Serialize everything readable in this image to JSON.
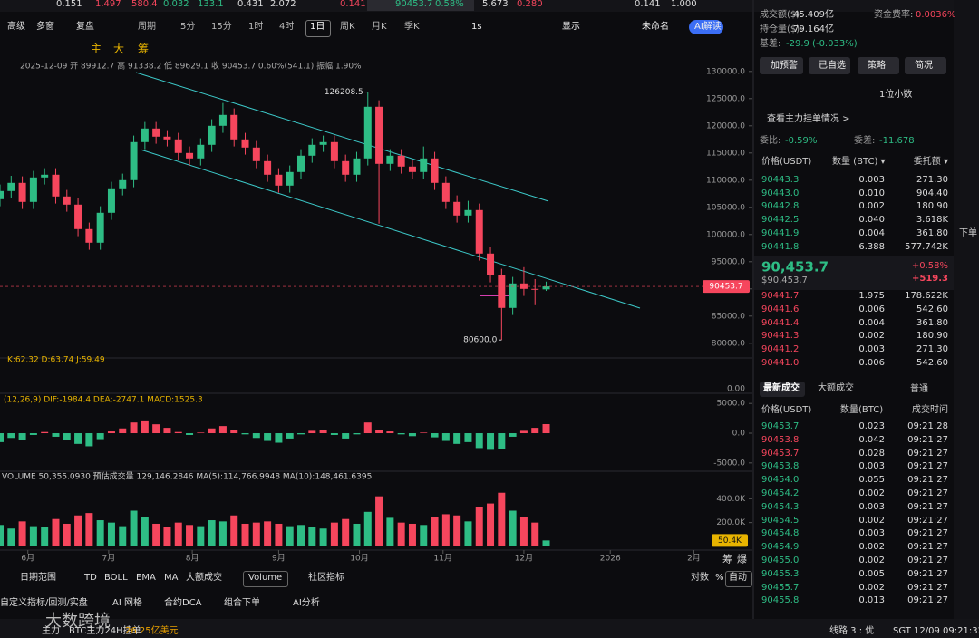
{
  "ticker": [
    "0.151",
    "1.497",
    "580.4",
    "0.032",
    "133.1",
    "0.431",
    "2.072",
    "0.141",
    "90453.7",
    "0.58%",
    "5.673",
    "0.280",
    "0.141",
    "1.000"
  ],
  "toolbar": {
    "left": [
      "高级",
      "多窗",
      "复盘"
    ],
    "periods": [
      "周期",
      "5分",
      "15分",
      "1时",
      "4时",
      "1日",
      "周K",
      "月K",
      "季K"
    ],
    "active_period": 5,
    "right": [
      "1s",
      "显示",
      "未命名",
      "AI解读"
    ]
  },
  "drawbar": [
    "主",
    "大",
    "筹"
  ],
  "info": "2025-12-09  开 89912.7  高 91338.2  低 89629.1  收 90453.7  0.60%(541.1)  振幅 1.90%",
  "indicators": {
    "kdj_label": "K:62.32  D:63.74  J:59.49",
    "kdj_tick": "0.00",
    "macd_label": "(12,26,9)  DIF:-1984.4  DEA:-2747.1  MACD:1525.3",
    "volume_label": "VOLUME 50,355.0930  预估成交量 129,146.2846  MA(5):114,766.9948  MA(10):148,461.6395"
  },
  "chart_data": [
    {
      "type": "candlestick",
      "up_color": "#2ebd85",
      "down_color": "#f6465d",
      "x": [
        0,
        4,
        8,
        12,
        16,
        20,
        24,
        28,
        32,
        36,
        40,
        44,
        48,
        52,
        56,
        60,
        64,
        68,
        72,
        76,
        80,
        84,
        88,
        92,
        96,
        100,
        104,
        108,
        112,
        116,
        120,
        124,
        128,
        132,
        136,
        140,
        144,
        148,
        152,
        156,
        160,
        164,
        168,
        172,
        176,
        180,
        184,
        188,
        192,
        196
      ],
      "ohlc": [
        [
          106500,
          109200,
          105200,
          108000
        ],
        [
          108000,
          110800,
          106700,
          109500
        ],
        [
          109500,
          110700,
          104700,
          106000
        ],
        [
          106000,
          111700,
          104700,
          110500
        ],
        [
          110500,
          112200,
          109200,
          111000
        ],
        [
          111000,
          112200,
          105700,
          107000
        ],
        [
          107000,
          108200,
          104200,
          105500
        ],
        [
          105500,
          106700,
          99700,
          101000
        ],
        [
          101000,
          102200,
          97200,
          98500
        ],
        [
          98500,
          105200,
          97200,
          104000
        ],
        [
          104000,
          109700,
          102700,
          108500
        ],
        [
          108500,
          111200,
          107200,
          110000
        ],
        [
          110000,
          118200,
          108700,
          117000
        ],
        [
          117000,
          120700,
          115700,
          119500
        ],
        [
          119500,
          120700,
          116700,
          118000
        ],
        [
          118000,
          119200,
          116200,
          117500
        ],
        [
          117500,
          118700,
          113700,
          115000
        ],
        [
          115000,
          116200,
          112700,
          114000
        ],
        [
          114000,
          117700,
          112700,
          116500
        ],
        [
          116500,
          121200,
          115200,
          120000
        ],
        [
          120000,
          124200,
          118700,
          122000
        ],
        [
          122000,
          123200,
          116200,
          117500
        ],
        [
          117500,
          118700,
          114700,
          116000
        ],
        [
          116000,
          117200,
          112200,
          113500
        ],
        [
          113500,
          114700,
          109700,
          111000
        ],
        [
          111000,
          112200,
          107700,
          109000
        ],
        [
          109000,
          112700,
          107700,
          111500
        ],
        [
          111500,
          115700,
          110200,
          114500
        ],
        [
          114500,
          117700,
          113200,
          116500
        ],
        [
          116500,
          118200,
          115200,
          117000
        ],
        [
          117000,
          118200,
          112200,
          113500
        ],
        [
          113500,
          114700,
          109700,
          111000
        ],
        [
          111000,
          115200,
          109700,
          114000
        ],
        [
          114000,
          126208.5,
          112700,
          123500
        ],
        [
          123500,
          124700,
          102000,
          113000
        ],
        [
          113000,
          115700,
          111700,
          114500
        ],
        [
          114500,
          115700,
          111200,
          112500
        ],
        [
          112500,
          113700,
          110200,
          111500
        ],
        [
          111500,
          116200,
          110200,
          114000
        ],
        [
          114000,
          115200,
          108200,
          109500
        ],
        [
          109500,
          110700,
          104700,
          106000
        ],
        [
          106000,
          107200,
          102200,
          103500
        ],
        [
          103500,
          106200,
          102200,
          104500
        ],
        [
          104500,
          105700,
          95200,
          96500
        ],
        [
          96500,
          97700,
          91200,
          92500
        ],
        [
          92500,
          93700,
          80600,
          86500
        ],
        [
          86500,
          92200,
          85200,
          91000
        ],
        [
          91000,
          94000,
          88700,
          90000
        ],
        [
          90000,
          91800,
          87000,
          89912.7
        ],
        [
          89912.7,
          91338.2,
          89629.1,
          90453.7
        ]
      ],
      "xlim": [
        0,
        270
      ],
      "xticks": [
        {
          "value": 10,
          "label": "6月"
        },
        {
          "value": 39,
          "label": "7月"
        },
        {
          "value": 69,
          "label": "8月"
        },
        {
          "value": 100,
          "label": "9月"
        },
        {
          "value": 129,
          "label": "10月"
        },
        {
          "value": 159,
          "label": "11月"
        },
        {
          "value": 188,
          "label": "12月"
        },
        {
          "value": 219,
          "label": "2026"
        },
        {
          "value": 249,
          "label": "2月"
        }
      ],
      "ylim": [
        77800,
        131800
      ],
      "yticks": [
        {
          "value": 80000,
          "label": "80000.0"
        },
        {
          "value": 85000,
          "label": "85000.0"
        },
        {
          "value": 90000,
          "label": "90000.0"
        },
        {
          "value": 95000,
          "label": "95000.0"
        },
        {
          "value": 100000,
          "label": "100000.0"
        },
        {
          "value": 105000,
          "label": "105000.0"
        },
        {
          "value": 110000,
          "label": "110000.0"
        },
        {
          "value": 115000,
          "label": "115000.0"
        },
        {
          "value": 120000,
          "label": "120000.0"
        },
        {
          "value": 125000,
          "label": "125000.0"
        },
        {
          "value": 130000,
          "label": "130000.0"
        }
      ],
      "annotations": [
        {
          "x": 132,
          "y": 126208.5,
          "label": "126208.5"
        },
        {
          "x": 180,
          "y": 80600,
          "label": "80600.0"
        }
      ],
      "last_price": {
        "value": 90453.7,
        "label": "90453.7"
      }
    },
    {
      "type": "histogram",
      "pos_color": "#f6465d",
      "neg_color": "#2ebd85",
      "x": [
        0,
        4,
        8,
        12,
        16,
        20,
        24,
        28,
        32,
        36,
        40,
        44,
        48,
        52,
        56,
        60,
        64,
        68,
        72,
        76,
        80,
        84,
        88,
        92,
        96,
        100,
        104,
        108,
        112,
        116,
        120,
        124,
        128,
        132,
        136,
        140,
        144,
        148,
        152,
        156,
        160,
        164,
        168,
        172,
        176,
        180,
        184,
        188,
        192,
        196
      ],
      "values": [
        -1500,
        -800,
        -1200,
        -300,
        200,
        -600,
        -1100,
        -1800,
        -2200,
        -1000,
        300,
        800,
        1800,
        2000,
        1500,
        900,
        200,
        -300,
        100,
        800,
        1200,
        600,
        -200,
        -800,
        -1300,
        -1600,
        -900,
        -200,
        400,
        500,
        -300,
        -900,
        -200,
        1800,
        600,
        300,
        -200,
        -500,
        100,
        -700,
        -1300,
        -1800,
        -1500,
        -2500,
        -2800,
        -2600,
        -600,
        400,
        900,
        1525.3
      ],
      "xlim": [
        0,
        270
      ],
      "ylim": [
        -6700,
        6400
      ],
      "yticks": [
        {
          "value": 5000,
          "label": "5000.0"
        },
        {
          "value": 0,
          "label": "0.0"
        },
        {
          "value": -5000,
          "label": "-5000.0"
        }
      ]
    },
    {
      "type": "bar",
      "up_color": "#2ebd85",
      "down_color": "#f6465d",
      "x": [
        0,
        4,
        8,
        12,
        16,
        20,
        24,
        28,
        32,
        36,
        40,
        44,
        48,
        52,
        56,
        60,
        64,
        68,
        72,
        76,
        80,
        84,
        88,
        92,
        96,
        100,
        104,
        108,
        112,
        116,
        120,
        124,
        128,
        132,
        136,
        140,
        144,
        148,
        152,
        156,
        160,
        164,
        168,
        172,
        176,
        180,
        184,
        188,
        192,
        196
      ],
      "values": [
        180000,
        150000,
        210000,
        170000,
        160000,
        230000,
        190000,
        260000,
        280000,
        220000,
        200000,
        170000,
        300000,
        250000,
        190000,
        160000,
        200000,
        180000,
        170000,
        220000,
        210000,
        260000,
        190000,
        200000,
        210000,
        190000,
        170000,
        180000,
        160000,
        150000,
        200000,
        230000,
        190000,
        290000,
        420000,
        240000,
        200000,
        190000,
        180000,
        250000,
        270000,
        260000,
        210000,
        330000,
        360000,
        450000,
        300000,
        250000,
        200000,
        50355.093
      ],
      "xlim": [
        0,
        270
      ],
      "ylim": [
        0,
        615000
      ],
      "yticks": [
        {
          "value": 400000,
          "label": "400.0K"
        },
        {
          "value": 200000,
          "label": "200.0K"
        }
      ],
      "last_label": {
        "value": 50355.093,
        "label": "50.4K"
      }
    }
  ],
  "indicator_bar": {
    "items": [
      "日期范围",
      "TD",
      "BOLL",
      "EMA",
      "MA",
      "大额成交",
      "Volume",
      "社区指标"
    ],
    "right": [
      "对数",
      "%",
      "自动"
    ],
    "side": [
      "筹",
      "爆"
    ]
  },
  "tools_bar": [
    "自定义指标/回测/实盘",
    "AI 网格",
    "合约DCA",
    "组合下单",
    "AI分析"
  ],
  "status": {
    "watermark": "大数跨境",
    "main": "主力",
    "label": "BTC主力24H挂单",
    "value": "26.25亿美元",
    "line": "线路 3 : 优",
    "time": "SGT 12/09 09:21:32"
  },
  "panel": {
    "stats": [
      {
        "label": "成交额($):",
        "value": "45.409亿"
      },
      {
        "label": "资金费率:",
        "value": "0.0036%"
      },
      {
        "label": "持仓量($):",
        "value": "79.164亿"
      },
      {
        "label": "基差:",
        "value": "-29.9 (-0.033%)"
      }
    ],
    "buttons": [
      "加预警",
      "已自选",
      "策略",
      "简况"
    ],
    "precision": "1位小数",
    "main_orders": "查看主力挂单情况 >",
    "ratio": {
      "label": "委比:",
      "value": "-0.59%",
      "diff_label": "委差:",
      "diff_value": "-11.678"
    },
    "book_headers": [
      "价格(USDT)",
      "数量 (BTC) ▾",
      "委托额 ▾"
    ],
    "asks": [
      [
        "90443.3",
        "0.003",
        "271.30"
      ],
      [
        "90443.0",
        "0.010",
        "904.40"
      ],
      [
        "90442.8",
        "0.002",
        "180.90"
      ],
      [
        "90442.5",
        "0.040",
        "3.618K"
      ],
      [
        "90441.9",
        "0.004",
        "361.80"
      ],
      [
        "90441.8",
        "6.388",
        "577.742K"
      ]
    ],
    "mid": {
      "price": "90,453.7",
      "usd": "$90,453.7",
      "pct": "+0.58%",
      "change": "+519.3"
    },
    "bids": [
      [
        "90441.7",
        "1.975",
        "178.622K"
      ],
      [
        "90441.6",
        "0.006",
        "542.60"
      ],
      [
        "90441.4",
        "0.004",
        "361.80"
      ],
      [
        "90441.3",
        "0.002",
        "180.90"
      ],
      [
        "90441.2",
        "0.003",
        "271.30"
      ],
      [
        "90441.0",
        "0.006",
        "542.60"
      ]
    ],
    "trade_tabs": [
      "最新成交",
      "大额成交"
    ],
    "trade_filter": "普通",
    "trade_headers": [
      "价格(USDT)",
      "数量(BTC)",
      "成交时间"
    ],
    "trades": [
      [
        "90453.7",
        "0.023",
        "09:21:28"
      ],
      [
        "90453.8",
        "0.042",
        "09:21:27"
      ],
      [
        "90453.7",
        "0.028",
        "09:21:27"
      ],
      [
        "90453.8",
        "0.003",
        "09:21:27"
      ],
      [
        "90454.0",
        "0.055",
        "09:21:27"
      ],
      [
        "90454.2",
        "0.002",
        "09:21:27"
      ],
      [
        "90454.3",
        "0.003",
        "09:21:27"
      ],
      [
        "90454.5",
        "0.002",
        "09:21:27"
      ],
      [
        "90454.8",
        "0.003",
        "09:21:27"
      ],
      [
        "90454.9",
        "0.002",
        "09:21:27"
      ],
      [
        "90455.0",
        "0.002",
        "09:21:27"
      ],
      [
        "90455.3",
        "0.005",
        "09:21:27"
      ],
      [
        "90455.7",
        "0.002",
        "09:21:27"
      ],
      [
        "90455.8",
        "0.013",
        "09:21:27"
      ]
    ],
    "trade_colors": [
      "#2ebd85",
      "#f6465d",
      "#f6465d",
      "#2ebd85",
      "#2ebd85",
      "#2ebd85",
      "#2ebd85",
      "#2ebd85",
      "#2ebd85",
      "#2ebd85",
      "#2ebd85",
      "#2ebd85",
      "#2ebd85",
      "#2ebd85"
    ]
  },
  "side_strip": "下单"
}
